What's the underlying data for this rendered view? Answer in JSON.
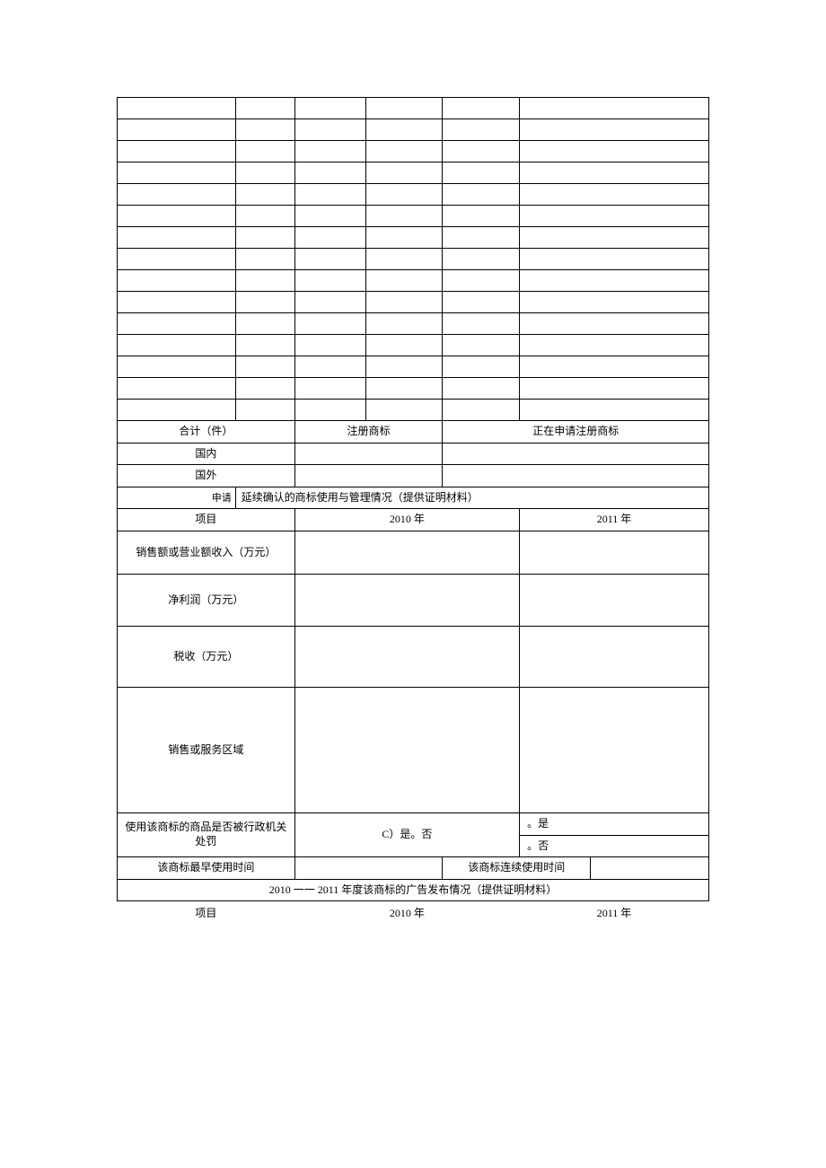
{
  "top_empty_rows": 15,
  "totals": {
    "header1": "合计（件）",
    "header2": "注册商标",
    "header3": "正在申请注册商标",
    "row_labels": [
      "国内",
      "国外"
    ]
  },
  "section_usage": {
    "prefix": "申请",
    "title": "延续确认的商标使用与管理情况（提供证明材料）",
    "col_header": "项目",
    "year1": "2010 年",
    "year2": "2011 年",
    "rows": [
      "销售额或营业额收入（万元）",
      "净利润（万元）",
      "税收（万元）",
      "销售或服务区域"
    ]
  },
  "penalty": {
    "label": "使用该商标的商品是否被行政机关处罚",
    "options_left": "C）是。否",
    "opt_yes": "。是",
    "opt_no": "。否"
  },
  "time_row": {
    "label1": "该商标最早使用时间",
    "label2": "该商标连续使用时间"
  },
  "ad_section": {
    "title": "2010 一一 2011 年度该商标的广告发布情况（提供证明材料）",
    "col_header": "项目",
    "year1": "2010 年",
    "year2": "2011 年"
  }
}
